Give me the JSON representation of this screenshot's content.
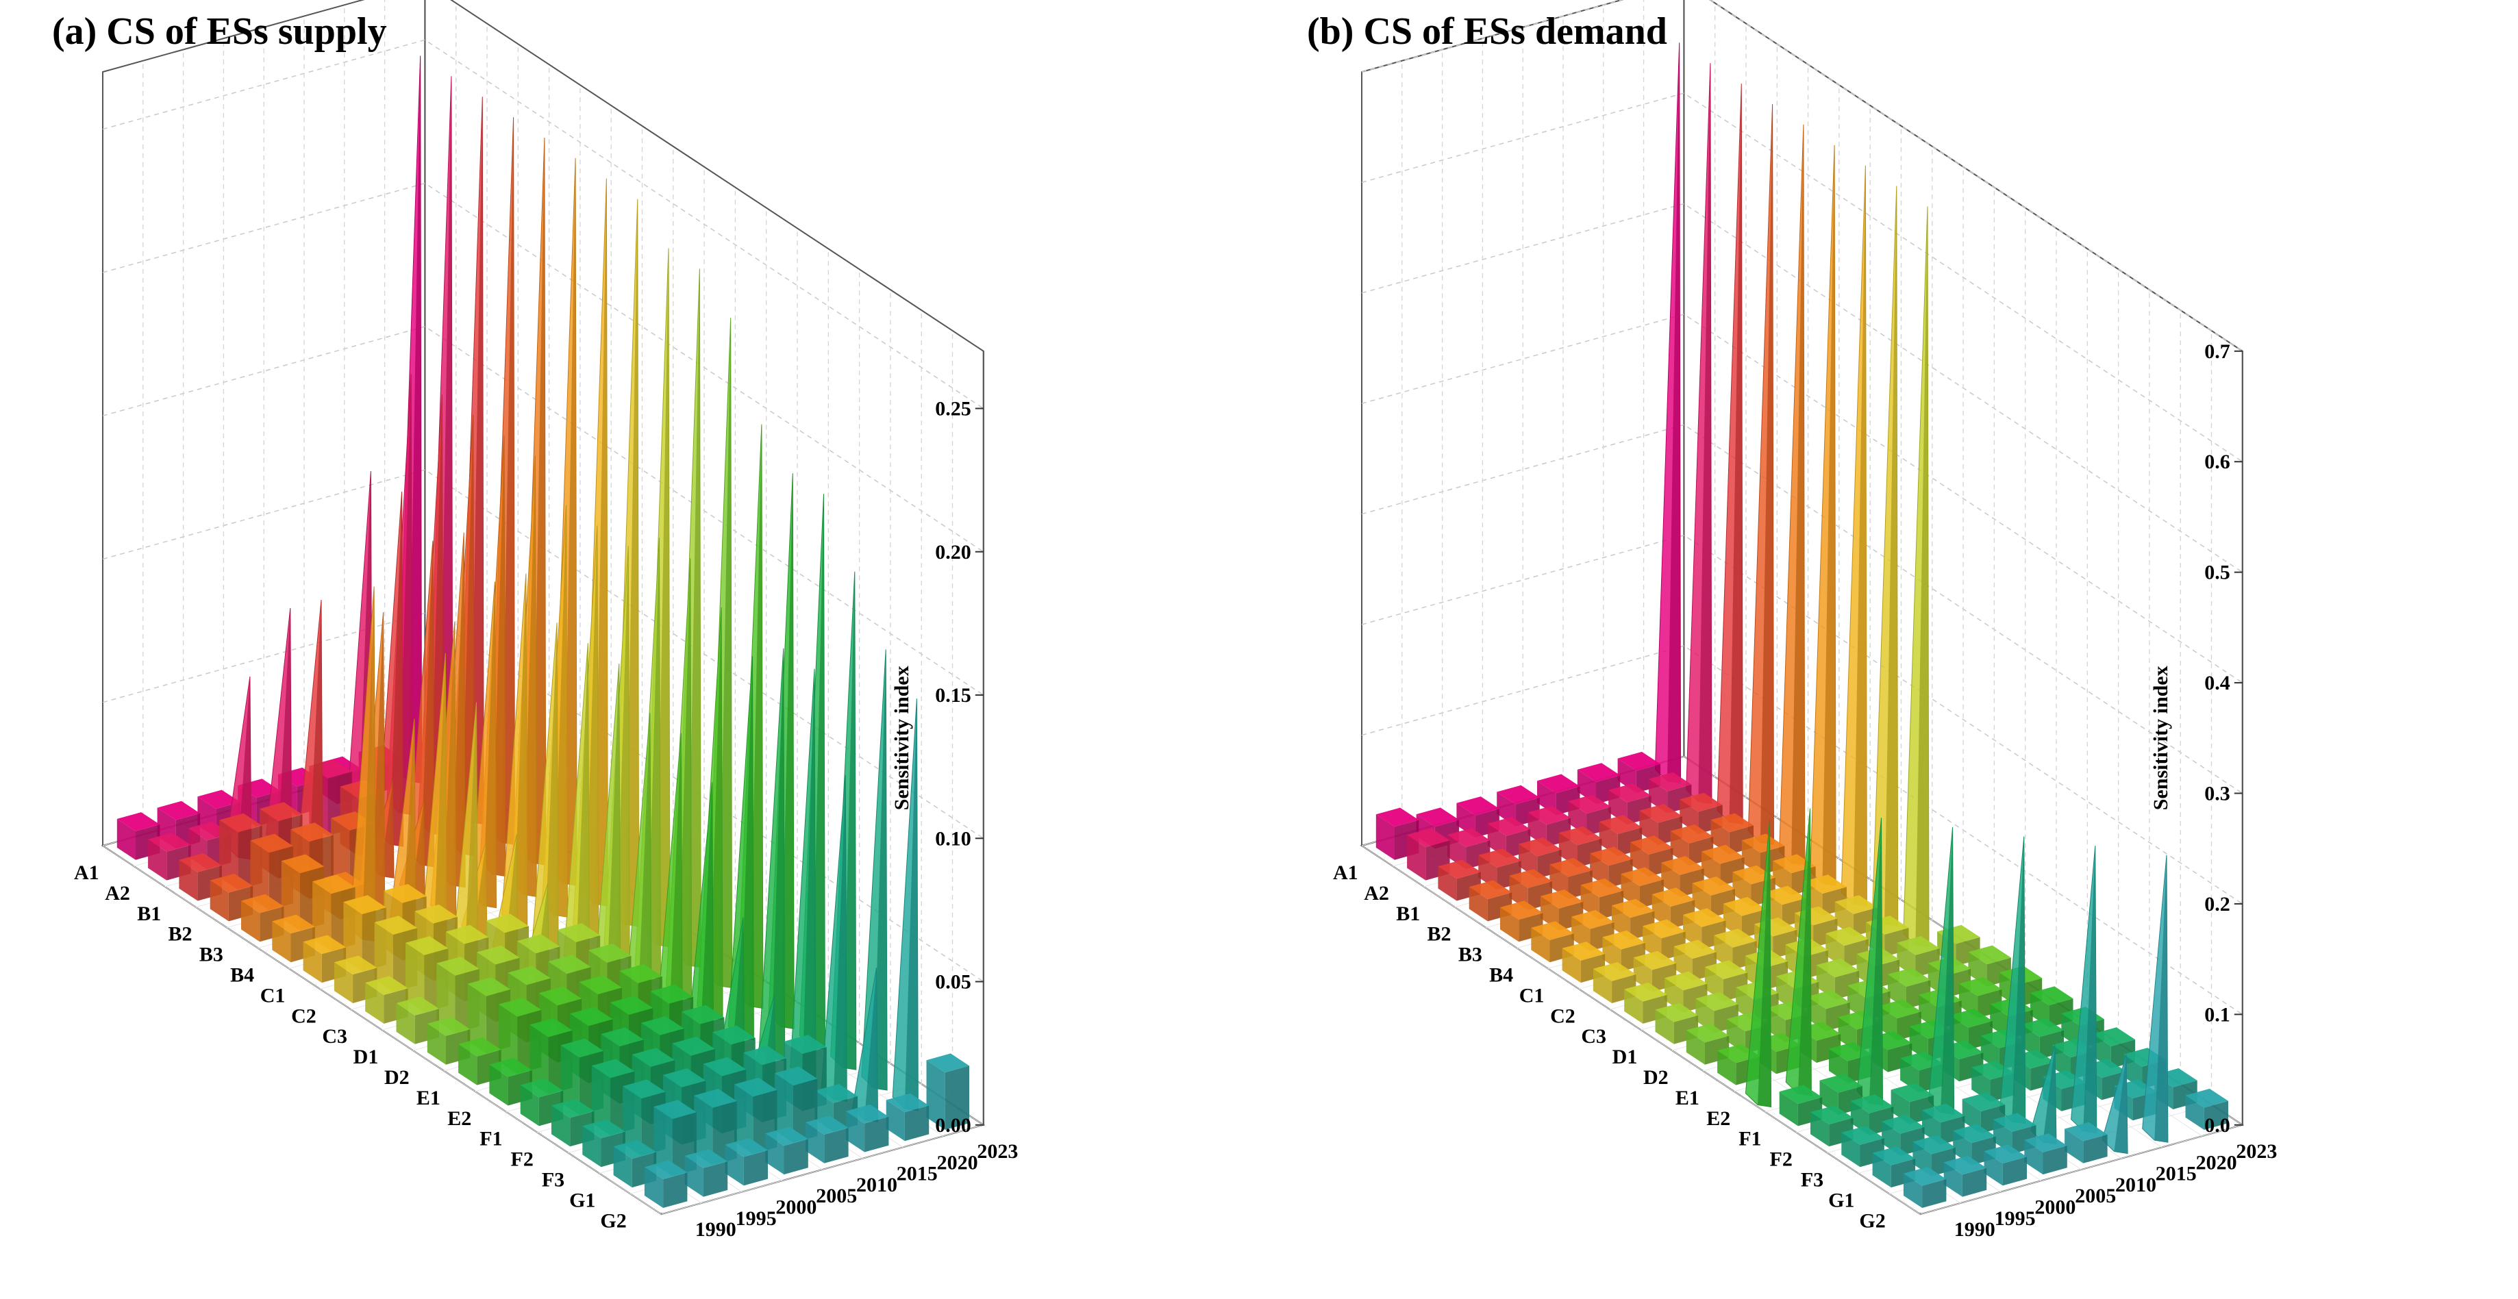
{
  "chart_data": [
    {
      "type": "3d-bar",
      "title": "(a) CS of ESs supply",
      "zlabel": "Sensitivity index",
      "zlim": [
        0,
        0.27
      ],
      "zticks": [
        "0.00",
        "0.05",
        "0.10",
        "0.15",
        "0.20",
        "0.25"
      ],
      "factors": [
        "A1",
        "A2",
        "B1",
        "B2",
        "B3",
        "B4",
        "C1",
        "C2",
        "C3",
        "D1",
        "D2",
        "E1",
        "E2",
        "F1",
        "F2",
        "F3",
        "G1",
        "G2"
      ],
      "years": [
        "1990",
        "1995",
        "2000",
        "2005",
        "2010",
        "2015",
        "2020",
        "2023"
      ],
      "series": [
        {
          "name": "2023",
          "values": [
            0.25,
            0.25,
            0.25,
            0.25,
            0.25,
            0.25,
            0.25,
            0.25,
            0.24,
            0.24,
            0.23,
            0.2,
            0.19,
            0.19,
            0.17,
            0.15,
            0.14,
            0.02
          ]
        },
        {
          "name": "2020",
          "values": [
            0.01,
            0.15,
            0.15,
            0.15,
            0.15,
            0.15,
            0.14,
            0.14,
            0.14,
            0.15,
            0.15,
            0.14,
            0.13,
            0.14,
            0.14,
            0.11,
            0.05,
            0.01
          ]
        },
        {
          "name": "2015",
          "values": [
            0.01,
            0.12,
            0.12,
            0.11,
            0.12,
            0.11,
            0.12,
            0.11,
            0.11,
            0.11,
            0.1,
            0.1,
            0.09,
            0.05,
            0.03,
            0.02,
            0.01,
            0.01
          ]
        },
        {
          "name": "2010",
          "values": [
            0.01,
            0.02,
            0.02,
            0.03,
            0.03,
            0.1,
            0.03,
            0.04,
            0.03,
            0.02,
            0.02,
            0.02,
            0.02,
            0.02,
            0.02,
            0.02,
            0.02,
            0.01
          ]
        },
        {
          "name": "2005",
          "values": [
            0.01,
            0.08,
            0.09,
            0.02,
            0.1,
            0.07,
            0.1,
            0.09,
            0.02,
            0.02,
            0.02,
            0.02,
            0.02,
            0.02,
            0.02,
            0.02,
            0.02,
            0.01
          ]
        },
        {
          "name": "2000",
          "values": [
            0.01,
            0.06,
            0.02,
            0.02,
            0.01,
            0.12,
            0.02,
            0.02,
            0.02,
            0.02,
            0.02,
            0.02,
            0.02,
            0.02,
            0.02,
            0.02,
            0.02,
            0.01
          ]
        },
        {
          "name": "1995",
          "values": [
            0.01,
            0.01,
            0.02,
            0.02,
            0.02,
            0.02,
            0.02,
            0.02,
            0.02,
            0.02,
            0.02,
            0.02,
            0.02,
            0.02,
            0.02,
            0.02,
            0.02,
            0.01
          ]
        },
        {
          "name": "1990",
          "values": [
            0.01,
            0.01,
            0.01,
            0.01,
            0.01,
            0.01,
            0.01,
            0.01,
            0.01,
            0.01,
            0.01,
            0.01,
            0.01,
            0.01,
            0.01,
            0.01,
            0.01,
            0.01
          ]
        }
      ]
    },
    {
      "type": "3d-bar",
      "title": "(b) CS of ESs demand",
      "zlabel": "Sensitivity index",
      "zlim": [
        0,
        0.7
      ],
      "zticks": [
        "0.0",
        "0.1",
        "0.2",
        "0.3",
        "0.4",
        "0.5",
        "0.6",
        "0.7"
      ],
      "factors": [
        "A1",
        "A2",
        "B1",
        "B2",
        "B3",
        "B4",
        "C1",
        "C2",
        "C3",
        "D1",
        "D2",
        "E1",
        "E2",
        "F1",
        "F2",
        "F3",
        "G1",
        "G2"
      ],
      "years": [
        "1990",
        "1995",
        "2000",
        "2005",
        "2010",
        "2015",
        "2020",
        "2023"
      ],
      "series": [
        {
          "name": "2023",
          "values": [
            0.66,
            0.66,
            0.66,
            0.66,
            0.66,
            0.66,
            0.66,
            0.66,
            0.66,
            0.02,
            0.02,
            0.02,
            0.02,
            0.02,
            0.02,
            0.02,
            0.02,
            0.02
          ]
        },
        {
          "name": "2020",
          "values": [
            0.02,
            0.02,
            0.02,
            0.02,
            0.02,
            0.02,
            0.02,
            0.02,
            0.02,
            0.02,
            0.02,
            0.02,
            0.02,
            0.02,
            0.02,
            0.02,
            0.02,
            0.25
          ]
        },
        {
          "name": "2015",
          "values": [
            0.02,
            0.02,
            0.02,
            0.02,
            0.02,
            0.02,
            0.02,
            0.02,
            0.02,
            0.02,
            0.02,
            0.02,
            0.02,
            0.02,
            0.02,
            0.02,
            0.25,
            0.08
          ]
        },
        {
          "name": "2010",
          "values": [
            0.02,
            0.02,
            0.02,
            0.02,
            0.02,
            0.02,
            0.02,
            0.02,
            0.02,
            0.02,
            0.02,
            0.02,
            0.02,
            0.02,
            0.02,
            0.25,
            0.08,
            0.02
          ]
        },
        {
          "name": "2005",
          "values": [
            0.02,
            0.02,
            0.02,
            0.02,
            0.02,
            0.02,
            0.02,
            0.02,
            0.02,
            0.02,
            0.02,
            0.02,
            0.02,
            0.02,
            0.25,
            0.02,
            0.02,
            0.02
          ]
        },
        {
          "name": "2000",
          "values": [
            0.02,
            0.02,
            0.02,
            0.02,
            0.02,
            0.02,
            0.02,
            0.02,
            0.02,
            0.02,
            0.02,
            0.02,
            0.02,
            0.25,
            0.02,
            0.02,
            0.02,
            0.02
          ]
        },
        {
          "name": "1995",
          "values": [
            0.02,
            0.02,
            0.02,
            0.02,
            0.02,
            0.02,
            0.02,
            0.02,
            0.02,
            0.02,
            0.02,
            0.02,
            0.25,
            0.02,
            0.02,
            0.02,
            0.02,
            0.02
          ]
        },
        {
          "name": "1990",
          "values": [
            0.03,
            0.03,
            0.02,
            0.02,
            0.02,
            0.02,
            0.02,
            0.02,
            0.02,
            0.02,
            0.02,
            0.02,
            0.25,
            0.02,
            0.02,
            0.02,
            0.02,
            0.02
          ]
        }
      ]
    }
  ],
  "palette": [
    "#e6007e",
    "#e3186a",
    "#e53a3c",
    "#ea5b24",
    "#ef7d1a",
    "#f39a1a",
    "#f2b51e",
    "#e3c727",
    "#c8d22c",
    "#a3d230",
    "#79cc2d",
    "#4fc427",
    "#2dbb2f",
    "#20b54c",
    "#1ab06a",
    "#1aac86",
    "#20a89c",
    "#2aa6ad"
  ]
}
